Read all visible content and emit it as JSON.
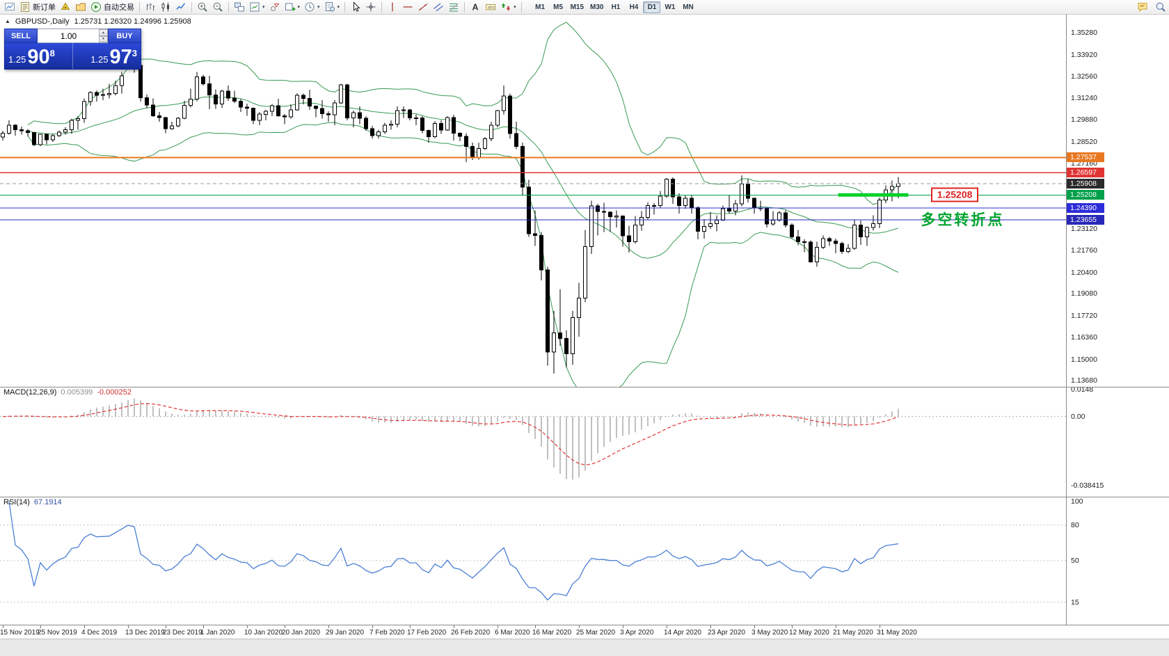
{
  "toolbar": {
    "items": [
      {
        "name": "new-chart",
        "icon": "chart"
      },
      {
        "name": "new-order",
        "icon": "order",
        "label": "新订单"
      },
      {
        "name": "expert-advisors",
        "icon": "ea"
      },
      {
        "name": "profiles",
        "icon": "profiles"
      },
      {
        "name": "autotrading",
        "icon": "play",
        "label": "自动交易"
      },
      {
        "sep": true
      },
      {
        "name": "bar-chart-mode",
        "icon": "bars"
      },
      {
        "name": "candle-chart-mode",
        "icon": "candles"
      },
      {
        "name": "line-chart-mode",
        "icon": "line"
      },
      {
        "sep": true
      },
      {
        "name": "zoom-in",
        "icon": "zoomin"
      },
      {
        "name": "zoom-out",
        "icon": "zoomout"
      },
      {
        "sep": true
      },
      {
        "name": "tile-windows",
        "icon": "tile"
      },
      {
        "name": "indicators",
        "icon": "indlist",
        "dd": true
      },
      {
        "name": "objects-list",
        "icon": "objlist"
      },
      {
        "name": "add-chart",
        "icon": "pluschart",
        "dd": true
      },
      {
        "name": "periods",
        "icon": "period",
        "dd": true
      },
      {
        "name": "templates",
        "icon": "template",
        "dd": true
      },
      {
        "sep": true
      },
      {
        "name": "cursor",
        "icon": "cursor"
      },
      {
        "name": "crosshair",
        "icon": "cross"
      },
      {
        "sep": true
      },
      {
        "name": "vertical-line",
        "icon": "vline"
      },
      {
        "name": "horizontal-line",
        "icon": "hline"
      },
      {
        "name": "trend-line",
        "icon": "tline"
      },
      {
        "name": "equidistant-channel",
        "icon": "channel"
      },
      {
        "name": "fibonacci",
        "icon": "fibo"
      },
      {
        "sep": true
      },
      {
        "name": "text",
        "icon": "textA"
      },
      {
        "name": "text-label",
        "icon": "label"
      },
      {
        "name": "arrow-objects",
        "icon": "arrows",
        "dd": true
      },
      {
        "sep": true
      }
    ],
    "timeframes": [
      {
        "label": "M1"
      },
      {
        "label": "M5"
      },
      {
        "label": "M15"
      },
      {
        "label": "M30"
      },
      {
        "label": "H1"
      },
      {
        "label": "H4"
      },
      {
        "label": "D1",
        "active": true
      },
      {
        "label": "W1"
      },
      {
        "label": "MN"
      }
    ],
    "right_items": [
      {
        "name": "community",
        "icon": "community"
      },
      {
        "name": "search",
        "icon": "search2"
      }
    ]
  },
  "chart": {
    "title": "GBPUSD-,Daily",
    "ohlc": "1.25731 1.26320 1.24996 1.25908",
    "trade_panel": {
      "sell": "SELL",
      "buy": "BUY",
      "volume": "1.00",
      "bid": {
        "small": "1.25",
        "big": "90",
        "sup": "8"
      },
      "ask": {
        "small": "1.25",
        "big": "97",
        "sup": "3"
      }
    },
    "annotations": {
      "price_label": {
        "text": "1.25208",
        "i": 148.2,
        "price": 1.25208,
        "color": "#e02222"
      },
      "note": {
        "text": "多空转折点",
        "i": 146.6,
        "price": 1.2373,
        "color": "#00a32e"
      }
    }
  },
  "chart_data": {
    "type": "candlestick",
    "symbol": "GBPUSD-",
    "period": "Daily",
    "price_axis": {
      "range": [
        1.133,
        1.3645
      ],
      "ticks": [
        "1.35280",
        "1.33920",
        "1.32560",
        "1.31240",
        "1.29880",
        "1.28520",
        "1.27160",
        "1.23120",
        "1.21760",
        "1.20400",
        "1.19080",
        "1.17720",
        "1.16360",
        "1.15000",
        "1.13680"
      ]
    },
    "lines": [
      {
        "price": 1.27537,
        "label": "1.27537",
        "color": "#e87820",
        "width": 2,
        "style": "solid"
      },
      {
        "price": 1.26597,
        "label": "1.26597",
        "color": "#e03434",
        "width": 1.5,
        "style": "solid"
      },
      {
        "price": 1.25908,
        "label": "1.25908",
        "color": "#9a9a9a",
        "label_bg": "#2b2b2b",
        "width": 1,
        "style": "dash",
        "current": true
      },
      {
        "price": 1.25208,
        "label": "1.25208",
        "color": "#00a04a",
        "width": 1,
        "style": "solid"
      },
      {
        "price": 1.2439,
        "label": "1.24390",
        "color": "#2c2cd8",
        "width": 1,
        "style": "solid"
      },
      {
        "price": 1.23655,
        "label": "1.23655",
        "color": "#2828b8",
        "width": 1,
        "style": "solid"
      }
    ],
    "green_segment": {
      "price": 1.25208,
      "i1": 133.4,
      "i2": 144.6,
      "color": "#00d02a",
      "thickness": 5
    },
    "bollinger": {
      "period": 20,
      "deviation": 2,
      "color": "#379a52"
    },
    "indicators": [
      {
        "type": "MACD",
        "label": "MACD(12,26,9)",
        "values": [
          "0.005399",
          "-0.000252"
        ],
        "axis_labels": [
          "0.0148",
          "0.00",
          "-0.038415"
        ],
        "axis_values": [
          0.0148,
          0,
          -0.038415
        ],
        "range": [
          -0.0445,
          0.0165
        ],
        "hist_color": "#c0c0c0",
        "signal_color": "#e03434"
      },
      {
        "type": "RSI",
        "label": "RSI(14)",
        "value": "67.1914",
        "axis_labels": [
          "100",
          "80",
          "50",
          "15"
        ],
        "axis_values": [
          100,
          80,
          50,
          15
        ],
        "levels": [
          80,
          50,
          15
        ],
        "range": [
          -4,
          104
        ],
        "color": "#4a7fd4"
      }
    ],
    "date_labels": [
      {
        "t": "15 Nov 2019",
        "i": 0
      },
      {
        "t": "25 Nov 2019",
        "i": 6
      },
      {
        "t": "4 Dec 2019",
        "i": 13
      },
      {
        "t": "13 Dec 2019",
        "i": 20
      },
      {
        "t": "23 Dec 2019",
        "i": 26
      },
      {
        "t": "1 Jan 2020",
        "i": 32
      },
      {
        "t": "10 Jan 2020",
        "i": 39
      },
      {
        "t": "20 Jan 2020",
        "i": 45
      },
      {
        "t": "29 Jan 2020",
        "i": 52
      },
      {
        "t": "7 Feb 2020",
        "i": 59
      },
      {
        "t": "17 Feb 2020",
        "i": 65
      },
      {
        "t": "26 Feb 2020",
        "i": 72
      },
      {
        "t": "6 Mar 2020",
        "i": 79
      },
      {
        "t": "16 Mar 2020",
        "i": 85
      },
      {
        "t": "25 Mar 2020",
        "i": 92
      },
      {
        "t": "3 Apr 2020",
        "i": 99
      },
      {
        "t": "14 Apr 2020",
        "i": 106
      },
      {
        "t": "23 Apr 2020",
        "i": 113
      },
      {
        "t": "3 May 2020",
        "i": 120
      },
      {
        "t": "12 May 2020",
        "i": 126
      },
      {
        "t": "21 May 2020",
        "i": 133
      },
      {
        "t": "31 May 2020",
        "i": 140
      }
    ],
    "candles": [
      [
        1.288,
        1.292,
        1.286,
        1.2905
      ],
      [
        1.2905,
        1.2985,
        1.2895,
        1.2953
      ],
      [
        1.2953,
        1.296,
        1.289,
        1.2925
      ],
      [
        1.2925,
        1.2945,
        1.2895,
        1.292
      ],
      [
        1.292,
        1.293,
        1.2885,
        1.2908
      ],
      [
        1.2908,
        1.2913,
        1.2825,
        1.2833
      ],
      [
        1.2833,
        1.29,
        1.2825,
        1.2897
      ],
      [
        1.2897,
        1.2905,
        1.2835,
        1.2863
      ],
      [
        1.2863,
        1.29,
        1.285,
        1.289
      ],
      [
        1.289,
        1.2922,
        1.288,
        1.291
      ],
      [
        1.291,
        1.294,
        1.2895,
        1.2925
      ],
      [
        1.2925,
        1.2995,
        1.29,
        1.2985
      ],
      [
        1.2985,
        1.301,
        1.2925,
        1.2995
      ],
      [
        1.2995,
        1.312,
        1.297,
        1.31
      ],
      [
        1.31,
        1.3165,
        1.3075,
        1.3158
      ],
      [
        1.3158,
        1.317,
        1.31,
        1.314
      ],
      [
        1.314,
        1.318,
        1.311,
        1.3145
      ],
      [
        1.3145,
        1.321,
        1.312,
        1.315
      ],
      [
        1.315,
        1.323,
        1.314,
        1.32
      ],
      [
        1.32,
        1.3285,
        1.315,
        1.326
      ],
      [
        1.338,
        1.3515,
        1.331,
        1.3333
      ],
      [
        1.3333,
        1.3422,
        1.328,
        1.3325
      ],
      [
        1.3325,
        1.333,
        1.31,
        1.3125
      ],
      [
        1.3125,
        1.3145,
        1.306,
        1.308
      ],
      [
        1.308,
        1.312,
        1.3005,
        1.3012
      ],
      [
        1.3012,
        1.3035,
        1.2975,
        1.3002
      ],
      [
        1.3002,
        1.3005,
        1.2905,
        1.2932
      ],
      [
        1.2932,
        1.2975,
        1.2925,
        1.295
      ],
      [
        1.295,
        1.3005,
        1.294,
        1.2998
      ],
      [
        1.2998,
        1.3105,
        1.299,
        1.3078
      ],
      [
        1.3078,
        1.318,
        1.3065,
        1.3115
      ],
      [
        1.3115,
        1.3284,
        1.3102,
        1.3255
      ],
      [
        1.3255,
        1.3268,
        1.32,
        1.321
      ],
      [
        1.321,
        1.326,
        1.3053,
        1.3142
      ],
      [
        1.3142,
        1.3176,
        1.3055,
        1.3085
      ],
      [
        1.3085,
        1.3175,
        1.3063,
        1.3166
      ],
      [
        1.3166,
        1.32,
        1.3105,
        1.3122
      ],
      [
        1.3122,
        1.3168,
        1.3093,
        1.3103
      ],
      [
        1.3103,
        1.3115,
        1.3035,
        1.3066
      ],
      [
        1.3066,
        1.3088,
        1.3012,
        1.306
      ],
      [
        1.306,
        1.3065,
        1.296,
        1.2985
      ],
      [
        1.2985,
        1.3035,
        1.2955,
        1.3022
      ],
      [
        1.3022,
        1.3049,
        1.2985,
        1.304
      ],
      [
        1.304,
        1.3085,
        1.301,
        1.3075
      ],
      [
        1.3075,
        1.3118,
        1.3005,
        1.3012
      ],
      [
        1.3012,
        1.3022,
        1.296,
        1.3005
      ],
      [
        1.3005,
        1.3083,
        1.2995,
        1.3048
      ],
      [
        1.3048,
        1.3153,
        1.3045,
        1.314
      ],
      [
        1.314,
        1.315,
        1.3083,
        1.312
      ],
      [
        1.312,
        1.3175,
        1.305,
        1.3073
      ],
      [
        1.3073,
        1.3078,
        1.3003,
        1.3058
      ],
      [
        1.3058,
        1.311,
        1.2995,
        1.3025
      ],
      [
        1.3025,
        1.304,
        1.2975,
        1.3018
      ],
      [
        1.3018,
        1.311,
        1.2955,
        1.3092
      ],
      [
        1.3092,
        1.321,
        1.3085,
        1.3205
      ],
      [
        1.3205,
        1.321,
        1.2985,
        1.3
      ],
      [
        1.3,
        1.3045,
        1.294,
        1.3032
      ],
      [
        1.3032,
        1.307,
        1.296,
        1.2998
      ],
      [
        1.2998,
        1.301,
        1.292,
        1.2932
      ],
      [
        1.2932,
        1.295,
        1.287,
        1.289
      ],
      [
        1.289,
        1.2925,
        1.2872,
        1.2912
      ],
      [
        1.2912,
        1.297,
        1.29,
        1.2953
      ],
      [
        1.2953,
        1.2985,
        1.2925,
        1.296
      ],
      [
        1.296,
        1.307,
        1.294,
        1.3045
      ],
      [
        1.3045,
        1.307,
        1.3,
        1.3048
      ],
      [
        1.3048,
        1.3055,
        1.2985,
        1.3
      ],
      [
        1.3,
        1.302,
        1.2955,
        1.3
      ],
      [
        1.3,
        1.301,
        1.2905,
        1.2922
      ],
      [
        1.2922,
        1.2925,
        1.2847,
        1.2882
      ],
      [
        1.2882,
        1.298,
        1.2875,
        1.2965
      ],
      [
        1.2965,
        1.2985,
        1.29,
        1.2923
      ],
      [
        1.2923,
        1.301,
        1.292,
        1.3002
      ],
      [
        1.3002,
        1.3018,
        1.2858,
        1.2905
      ],
      [
        1.2905,
        1.291,
        1.2855,
        1.2885
      ],
      [
        1.2885,
        1.2905,
        1.2725,
        1.2823
      ],
      [
        1.2823,
        1.2845,
        1.2738,
        1.2752
      ],
      [
        1.2752,
        1.2845,
        1.274,
        1.281
      ],
      [
        1.281,
        1.288,
        1.28,
        1.287
      ],
      [
        1.287,
        1.2975,
        1.2855,
        1.2953
      ],
      [
        1.2953,
        1.305,
        1.294,
        1.3045
      ],
      [
        1.3045,
        1.32,
        1.302,
        1.3135
      ],
      [
        1.3135,
        1.315,
        1.287,
        1.2903
      ],
      [
        1.2903,
        1.2975,
        1.2805,
        1.2822
      ],
      [
        1.2822,
        1.2845,
        1.2515,
        1.257
      ],
      [
        1.257,
        1.2615,
        1.226,
        1.228
      ],
      [
        1.228,
        1.2425,
        1.2205,
        1.227
      ],
      [
        1.227,
        1.229,
        1.199,
        1.2055
      ],
      [
        1.2055,
        1.2075,
        1.1462,
        1.1545
      ],
      [
        1.1545,
        1.18,
        1.1412,
        1.1665
      ],
      [
        1.1665,
        1.1935,
        1.1585,
        1.163
      ],
      [
        1.163,
        1.168,
        1.145,
        1.1535
      ],
      [
        1.1535,
        1.18,
        1.1465,
        1.176
      ],
      [
        1.176,
        1.1975,
        1.164,
        1.188
      ],
      [
        1.188,
        1.2305,
        1.1855,
        1.22
      ],
      [
        1.22,
        1.2485,
        1.2155,
        1.2453
      ],
      [
        1.2453,
        1.2465,
        1.227,
        1.2418
      ],
      [
        1.2418,
        1.2472,
        1.229,
        1.2415
      ],
      [
        1.2415,
        1.242,
        1.229,
        1.2385
      ],
      [
        1.2385,
        1.2425,
        1.232,
        1.239
      ],
      [
        1.239,
        1.2395,
        1.22,
        1.2268
      ],
      [
        1.2268,
        1.233,
        1.2163,
        1.223
      ],
      [
        1.223,
        1.239,
        1.222,
        1.2335
      ],
      [
        1.2335,
        1.242,
        1.23,
        1.2382
      ],
      [
        1.2382,
        1.2475,
        1.2365,
        1.2455
      ],
      [
        1.2455,
        1.247,
        1.24,
        1.2455
      ],
      [
        1.2455,
        1.2545,
        1.244,
        1.2513
      ],
      [
        1.2513,
        1.2625,
        1.2505,
        1.262
      ],
      [
        1.262,
        1.263,
        1.2465,
        1.251
      ],
      [
        1.251,
        1.253,
        1.2405,
        1.2455
      ],
      [
        1.2455,
        1.252,
        1.2435,
        1.25
      ],
      [
        1.25,
        1.252,
        1.2405,
        1.2442
      ],
      [
        1.2442,
        1.245,
        1.2245,
        1.2295
      ],
      [
        1.2295,
        1.237,
        1.225,
        1.2325
      ],
      [
        1.2325,
        1.2415,
        1.231,
        1.2343
      ],
      [
        1.2343,
        1.2395,
        1.2295,
        1.2365
      ],
      [
        1.2365,
        1.2455,
        1.236,
        1.2435
      ],
      [
        1.2435,
        1.252,
        1.2405,
        1.242
      ],
      [
        1.242,
        1.249,
        1.2395,
        1.2465
      ],
      [
        1.2465,
        1.2643,
        1.245,
        1.259
      ],
      [
        1.259,
        1.262,
        1.2475,
        1.25
      ],
      [
        1.25,
        1.2505,
        1.2405,
        1.244
      ],
      [
        1.244,
        1.2485,
        1.242,
        1.2435
      ],
      [
        1.2435,
        1.2445,
        1.232,
        1.234
      ],
      [
        1.234,
        1.242,
        1.233,
        1.2365
      ],
      [
        1.2365,
        1.242,
        1.2355,
        1.241
      ],
      [
        1.241,
        1.2425,
        1.232,
        1.2335
      ],
      [
        1.2335,
        1.2345,
        1.225,
        1.226
      ],
      [
        1.226,
        1.2305,
        1.221,
        1.223
      ],
      [
        1.223,
        1.2245,
        1.2165,
        1.2228
      ],
      [
        1.2228,
        1.224,
        1.21,
        1.2105
      ],
      [
        1.2105,
        1.223,
        1.2075,
        1.2195
      ],
      [
        1.2195,
        1.227,
        1.2185,
        1.225
      ],
      [
        1.225,
        1.226,
        1.2205,
        1.2235
      ],
      [
        1.2235,
        1.225,
        1.216,
        1.222
      ],
      [
        1.222,
        1.223,
        1.2155,
        1.217
      ],
      [
        1.217,
        1.2215,
        1.216,
        1.219
      ],
      [
        1.219,
        1.2365,
        1.218,
        1.2335
      ],
      [
        1.2335,
        1.2363,
        1.2212,
        1.226
      ],
      [
        1.226,
        1.2325,
        1.2205,
        1.232
      ],
      [
        1.232,
        1.2395,
        1.23,
        1.2343
      ],
      [
        1.2343,
        1.2505,
        1.2315,
        1.249
      ],
      [
        1.249,
        1.258,
        1.247,
        1.2553
      ],
      [
        1.2553,
        1.261,
        1.248,
        1.2573
      ],
      [
        1.25731,
        1.2632,
        1.24996,
        1.25908
      ]
    ]
  }
}
